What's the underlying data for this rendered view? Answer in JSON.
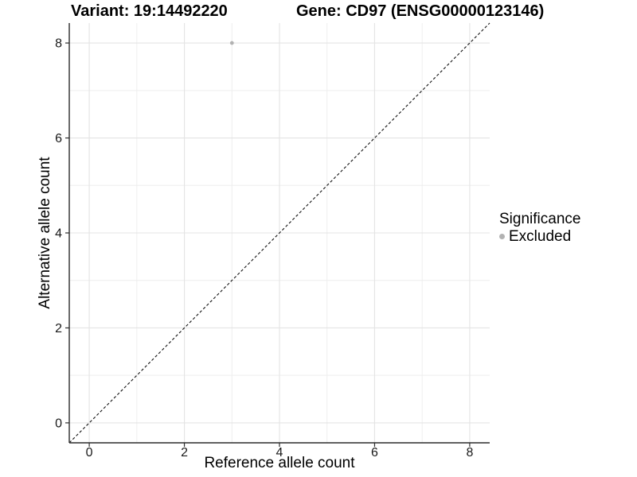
{
  "header": {
    "variant": "Variant: 19:14492220",
    "gene": "Gene: CD97 (ENSG00000123146)"
  },
  "chart_data": {
    "type": "scatter",
    "title_left": "Variant: 19:14492220",
    "title_right": "Gene: CD97 (ENSG00000123146)",
    "xlabel": "Reference allele count",
    "ylabel": "Alternative allele count",
    "xticks": [
      0,
      2,
      4,
      6,
      8
    ],
    "yticks": [
      0,
      2,
      4,
      6,
      8
    ],
    "x_minor_ticks": [
      1,
      3,
      5,
      7
    ],
    "y_minor_ticks": [
      1,
      3,
      5,
      7
    ],
    "xlim": [
      -0.42,
      8.42
    ],
    "ylim": [
      -0.42,
      8.42
    ],
    "grid": true,
    "series": [
      {
        "name": "Excluded",
        "points": [
          {
            "x": 3,
            "y": 8
          }
        ]
      }
    ],
    "reference_line": {
      "type": "identity",
      "equation": "y = x",
      "style": "dashed"
    },
    "legend": {
      "title": "Significance",
      "position": "right",
      "entries": [
        {
          "label": "Excluded",
          "color": "#b2b2b2"
        }
      ]
    }
  },
  "colors": {
    "background": "#ffffff",
    "panel_background": "#ffffff",
    "gridline_major": "#e4e4e4",
    "gridline_minor": "#eeeeee",
    "axis_line": "#2b2b2b",
    "tick_mark": "#2b2b2b",
    "tick_label": "#1a1a1a",
    "reference_line": "#111111",
    "point": "#b2b2b2",
    "text": "#000000"
  }
}
